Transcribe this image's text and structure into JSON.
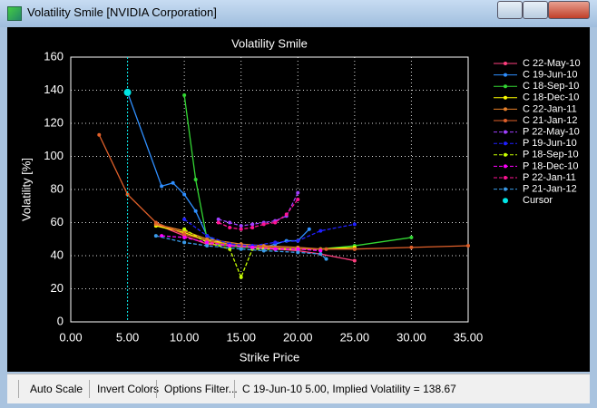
{
  "window": {
    "title": "Volatility Smile [NVIDIA Corporation]"
  },
  "toolbar": {
    "buttons": [
      "Auto Scale",
      "Invert Colors",
      "Options Filter..."
    ],
    "status": "C 19-Jun-10 5.00, Implied Volatility = 138.67"
  },
  "chart_data": {
    "type": "line",
    "title": "Volatility Smile",
    "x_label": "Strike Price",
    "y_label": "Volatility [%]",
    "xlim": [
      0,
      35
    ],
    "ylim": [
      0,
      160
    ],
    "xticks": [
      {
        "value": 0,
        "label": "0.00"
      },
      {
        "value": 5,
        "label": "5.00"
      },
      {
        "value": 10,
        "label": "10.00"
      },
      {
        "value": 15,
        "label": "15.00"
      },
      {
        "value": 20,
        "label": "20.00"
      },
      {
        "value": 25,
        "label": "25.00"
      },
      {
        "value": 30,
        "label": "30.00"
      },
      {
        "value": 35,
        "label": "35.00"
      }
    ],
    "yticks": [
      0,
      20,
      40,
      60,
      80,
      100,
      120,
      140,
      160
    ],
    "grid": true,
    "legend": "right",
    "series": [
      {
        "name": "C 22-May-10",
        "color": "#ff3f7f",
        "dashed": false,
        "x": [
          7.5,
          10,
          12,
          14,
          16,
          18,
          20,
          22,
          25
        ],
        "values": [
          59,
          52,
          47,
          46,
          45,
          44,
          43,
          41,
          37
        ]
      },
      {
        "name": "C 19-Jun-10",
        "color": "#2f8fff",
        "dashed": false,
        "x": [
          5,
          8,
          9,
          10,
          11,
          12,
          13,
          14,
          15,
          16,
          17,
          18,
          19,
          20,
          21
        ],
        "values": [
          138.67,
          82,
          84,
          77,
          67,
          52,
          48,
          47,
          46,
          45,
          45,
          47,
          49,
          49,
          56
        ]
      },
      {
        "name": "C 18-Sep-10",
        "color": "#33d633",
        "dashed": false,
        "x": [
          10,
          11,
          12,
          13,
          14,
          15,
          16,
          17,
          18,
          20,
          22,
          25,
          30
        ],
        "values": [
          137,
          86,
          50,
          47,
          46,
          45,
          45,
          44,
          44,
          44,
          44,
          46,
          51
        ]
      },
      {
        "name": "C 18-Dec-10",
        "color": "#ffff00",
        "dashed": false,
        "x": [
          7.5,
          10,
          12,
          13,
          15,
          17,
          20,
          22,
          25
        ],
        "values": [
          58,
          54,
          49,
          48,
          46,
          45,
          44,
          44,
          45
        ]
      },
      {
        "name": "C 22-Jan-11",
        "color": "#e8802a",
        "dashed": false,
        "x": [
          7.5,
          10,
          12,
          15,
          17,
          20,
          22,
          25
        ],
        "values": [
          59,
          55,
          50,
          47,
          46,
          45,
          44,
          44
        ]
      },
      {
        "name": "C 21-Jan-12",
        "color": "#e0602a",
        "dashed": false,
        "x": [
          2.5,
          5,
          7.5,
          10,
          12.5,
          15,
          17.5,
          20,
          22.5,
          25,
          30,
          35
        ],
        "values": [
          113,
          77,
          60,
          53,
          48,
          46,
          45,
          44,
          44,
          44,
          45,
          46
        ]
      },
      {
        "name": "P 22-May-10",
        "color": "#a040ff",
        "dashed": true,
        "x": [
          13,
          14,
          15,
          16,
          17,
          18,
          19,
          20
        ],
        "values": [
          62,
          60,
          58,
          59,
          60,
          61,
          64,
          78
        ]
      },
      {
        "name": "P 19-Jun-10",
        "color": "#2020ff",
        "dashed": true,
        "x": [
          10,
          12,
          14,
          16,
          18,
          20,
          22,
          25
        ],
        "values": [
          62,
          52,
          47,
          46,
          48,
          49,
          55,
          59
        ]
      },
      {
        "name": "P 18-Sep-10",
        "color": "#c8ff00",
        "dashed": true,
        "x": [
          10,
          12,
          14,
          15,
          16,
          18,
          20
        ],
        "values": [
          56,
          48,
          44,
          27,
          44,
          44,
          44
        ]
      },
      {
        "name": "P 18-Dec-10",
        "color": "#ff00ff",
        "dashed": true,
        "x": [
          8,
          10,
          12,
          14,
          16,
          18,
          20,
          22
        ],
        "values": [
          52,
          51,
          48,
          46,
          45,
          44,
          44,
          43
        ]
      },
      {
        "name": "P 22-Jan-11",
        "color": "#ff1493",
        "dashed": true,
        "x": [
          13,
          14,
          15,
          16,
          17,
          18,
          19,
          20
        ],
        "values": [
          60,
          57,
          56,
          57,
          59,
          60,
          65,
          74
        ]
      },
      {
        "name": "P 21-Jan-12",
        "color": "#3a9ae8",
        "dashed": true,
        "x": [
          7.5,
          10,
          12,
          15,
          17,
          20,
          22,
          22.5
        ],
        "values": [
          52,
          48,
          46,
          44,
          43,
          42,
          41,
          38
        ]
      },
      {
        "name": "Cursor",
        "color": "#00e5e5",
        "dashed": false,
        "cursor": true,
        "x": [
          5
        ],
        "values": [
          138.67
        ]
      }
    ]
  }
}
